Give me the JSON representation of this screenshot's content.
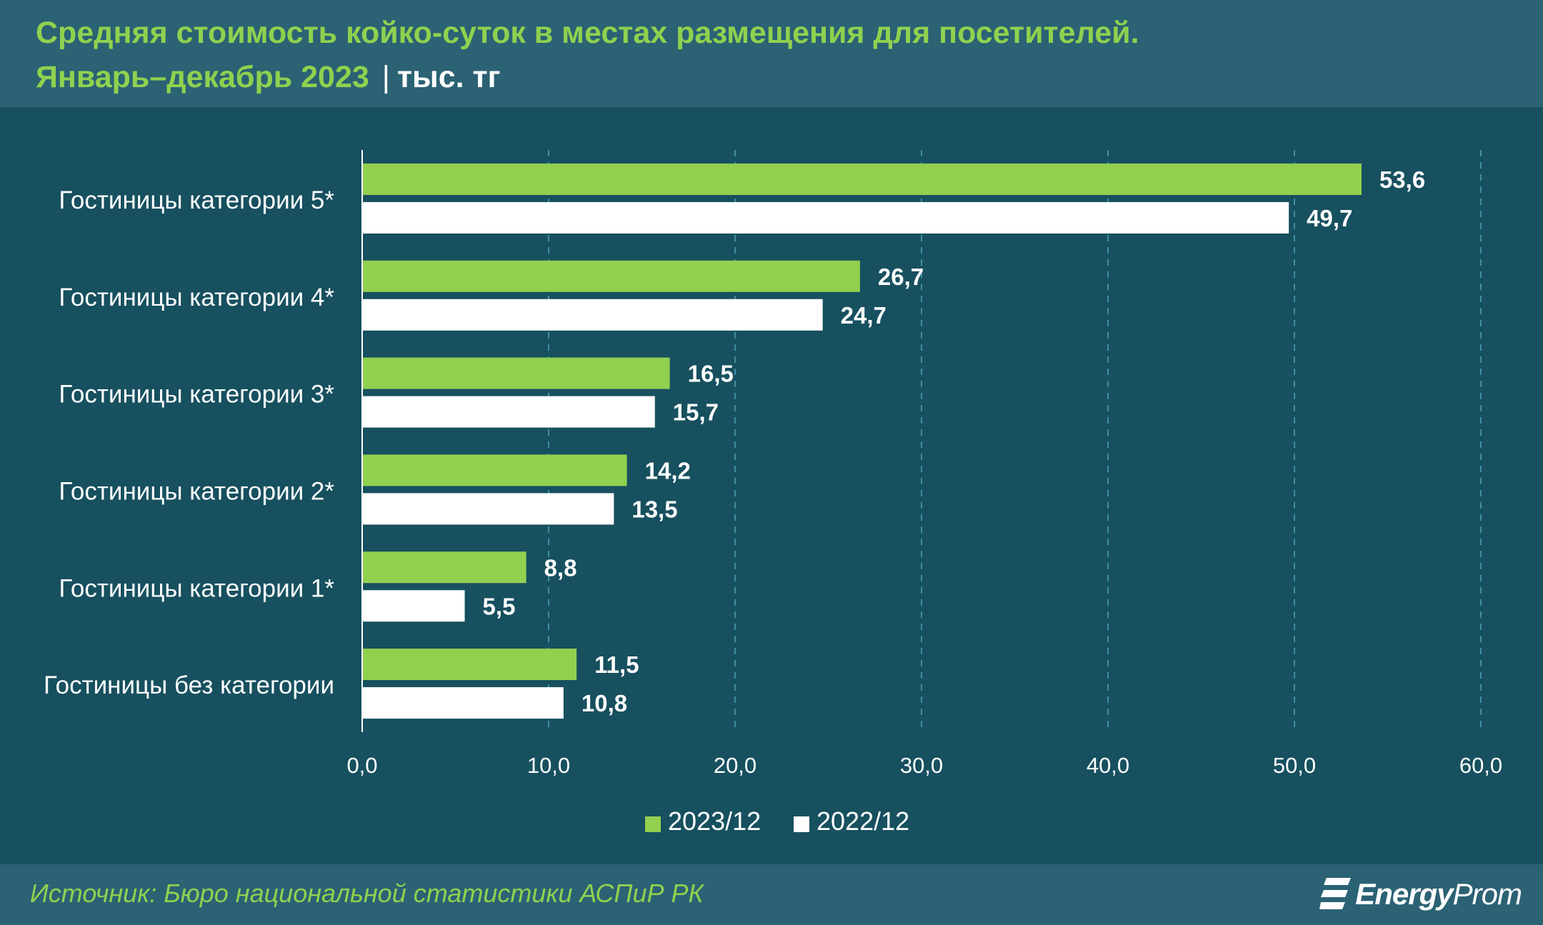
{
  "title": {
    "line1": "Средняя стоимость койко-суток в местах размещения для посетителей.",
    "line2": "Январь–декабрь 2023",
    "separator": "|",
    "unit": "тыс. тг"
  },
  "source": "Источник: Бюро национальной статистики АСПиР РК",
  "logo": {
    "text_prefix": "Energy",
    "text_suffix": "Prom"
  },
  "colors": {
    "series_2023": "#92d050",
    "series_2022": "#ffffff",
    "grid": "#3f8fa3",
    "text": "#ffffff"
  },
  "chart_data": {
    "type": "bar",
    "orientation": "horizontal",
    "categories": [
      "Гостиницы категории 5*",
      "Гостиницы категории 4*",
      "Гостиницы категории 3*",
      "Гостиницы категории 2*",
      "Гостиницы категории 1*",
      "Гостиницы без категории"
    ],
    "series": [
      {
        "name": "2023/12",
        "color": "#92d050",
        "values": [
          53.6,
          26.7,
          16.5,
          14.2,
          8.8,
          11.5
        ],
        "labels": [
          "53,6",
          "26,7",
          "16,5",
          "14,2",
          "8,8",
          "11,5"
        ]
      },
      {
        "name": "2022/12",
        "color": "#ffffff",
        "values": [
          49.7,
          24.7,
          15.7,
          13.5,
          5.5,
          10.8
        ],
        "labels": [
          "49,7",
          "24,7",
          "15,7",
          "13,5",
          "5,5",
          "10,8"
        ]
      }
    ],
    "xlim": [
      0,
      60
    ],
    "xticks": [
      0,
      10,
      20,
      30,
      40,
      50,
      60
    ],
    "xtick_labels": [
      "0,0",
      "10,0",
      "20,0",
      "30,0",
      "40,0",
      "50,0",
      "60,0"
    ],
    "grid": true,
    "legend": "bottom"
  }
}
